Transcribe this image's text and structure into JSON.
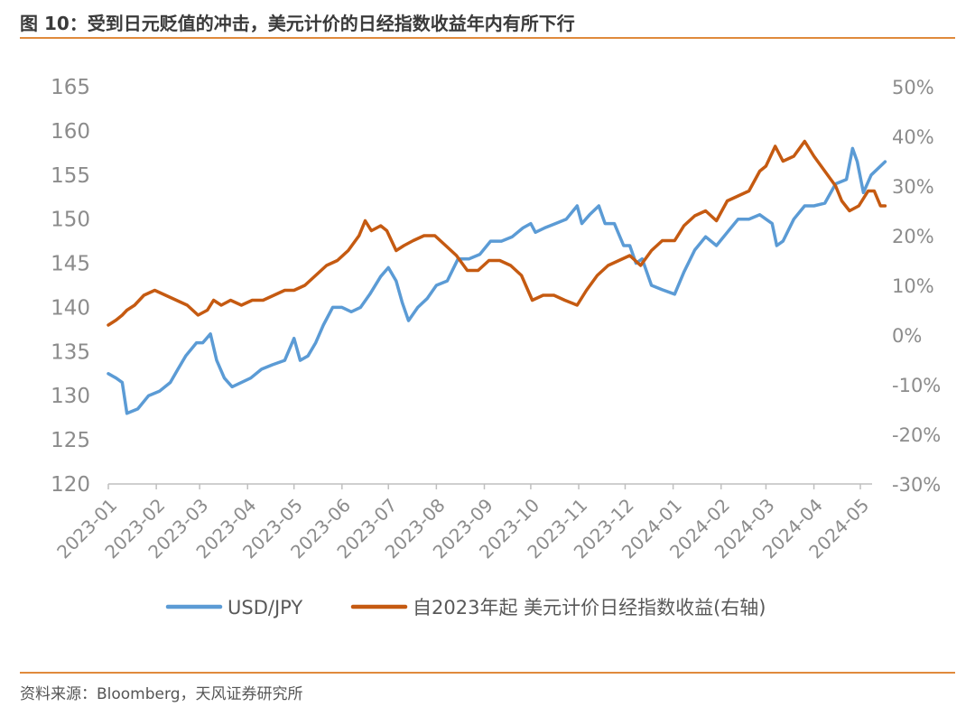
{
  "header": {
    "title": "图 10：受到日元贬值的冲击，美元计价的日经指数收益年内有所下行"
  },
  "footer": {
    "source": "资料来源：Bloomberg，天风证券研究所"
  },
  "colors": {
    "usdjpy": "#5b9bd5",
    "nikkei": "#c55a11",
    "accent": "#e08a3c",
    "tick": "#8c8c8c",
    "axis": "#bfbfbf"
  },
  "chart_data": {
    "type": "line",
    "title": "",
    "x_tick_labels": [
      "2023-01",
      "2023-02",
      "2023-03",
      "2023-04",
      "2023-05",
      "2023-06",
      "2023-07",
      "2023-08",
      "2023-09",
      "2023-10",
      "2023-11",
      "2023-12",
      "2024-01",
      "2024-02",
      "2024-03",
      "2024-04",
      "2024-05"
    ],
    "y_left": {
      "lim": [
        120,
        165
      ],
      "ticks": [
        "120",
        "125",
        "130",
        "135",
        "140",
        "145",
        "150",
        "155",
        "160",
        "165"
      ]
    },
    "y_right": {
      "lim": [
        -0.3,
        0.5
      ],
      "ticks": [
        "-30%",
        "-20%",
        "-10%",
        "0%",
        "10%",
        "20%",
        "30%",
        "40%",
        "50%"
      ]
    },
    "grid": false,
    "legend": {
      "position": "bottom"
    },
    "series": [
      {
        "name": "USD/JPY",
        "axis": "left",
        "points": [
          [
            "2023-01-01",
            132.5
          ],
          [
            "2023-01-06",
            132.0
          ],
          [
            "2023-01-10",
            131.5
          ],
          [
            "2023-01-13",
            128.0
          ],
          [
            "2023-01-20",
            128.5
          ],
          [
            "2023-01-27",
            130.0
          ],
          [
            "2023-02-03",
            130.5
          ],
          [
            "2023-02-10",
            131.5
          ],
          [
            "2023-02-15",
            133.0
          ],
          [
            "2023-02-20",
            134.5
          ],
          [
            "2023-02-27",
            136.0
          ],
          [
            "2023-03-03",
            136.0
          ],
          [
            "2023-03-08",
            137.0
          ],
          [
            "2023-03-12",
            134.0
          ],
          [
            "2023-03-17",
            132.0
          ],
          [
            "2023-03-22",
            131.0
          ],
          [
            "2023-03-28",
            131.5
          ],
          [
            "2023-04-03",
            132.0
          ],
          [
            "2023-04-10",
            133.0
          ],
          [
            "2023-04-17",
            133.5
          ],
          [
            "2023-04-25",
            134.0
          ],
          [
            "2023-05-01",
            136.5
          ],
          [
            "2023-05-05",
            134.0
          ],
          [
            "2023-05-10",
            134.5
          ],
          [
            "2023-05-15",
            136.0
          ],
          [
            "2023-05-20",
            138.0
          ],
          [
            "2023-05-26",
            140.0
          ],
          [
            "2023-06-01",
            140.0
          ],
          [
            "2023-06-07",
            139.5
          ],
          [
            "2023-06-13",
            140.0
          ],
          [
            "2023-06-19",
            141.5
          ],
          [
            "2023-06-26",
            143.5
          ],
          [
            "2023-07-01",
            144.5
          ],
          [
            "2023-07-06",
            143.0
          ],
          [
            "2023-07-10",
            140.5
          ],
          [
            "2023-07-14",
            138.5
          ],
          [
            "2023-07-20",
            140.0
          ],
          [
            "2023-07-26",
            141.0
          ],
          [
            "2023-08-01",
            142.5
          ],
          [
            "2023-08-08",
            143.0
          ],
          [
            "2023-08-15",
            145.5
          ],
          [
            "2023-08-22",
            145.5
          ],
          [
            "2023-08-29",
            146.0
          ],
          [
            "2023-09-05",
            147.5
          ],
          [
            "2023-09-12",
            147.5
          ],
          [
            "2023-09-19",
            148.0
          ],
          [
            "2023-09-26",
            149.0
          ],
          [
            "2023-10-01",
            149.5
          ],
          [
            "2023-10-04",
            148.5
          ],
          [
            "2023-10-10",
            149.0
          ],
          [
            "2023-10-17",
            149.5
          ],
          [
            "2023-10-24",
            150.0
          ],
          [
            "2023-10-31",
            151.5
          ],
          [
            "2023-11-03",
            149.5
          ],
          [
            "2023-11-08",
            150.5
          ],
          [
            "2023-11-14",
            151.5
          ],
          [
            "2023-11-18",
            149.5
          ],
          [
            "2023-11-24",
            149.5
          ],
          [
            "2023-11-30",
            147.0
          ],
          [
            "2023-12-04",
            147.0
          ],
          [
            "2023-12-08",
            145.0
          ],
          [
            "2023-12-12",
            145.5
          ],
          [
            "2023-12-18",
            142.5
          ],
          [
            "2023-12-25",
            142.0
          ],
          [
            "2024-01-02",
            141.5
          ],
          [
            "2024-01-08",
            144.0
          ],
          [
            "2024-01-15",
            146.5
          ],
          [
            "2024-01-22",
            148.0
          ],
          [
            "2024-01-29",
            147.0
          ],
          [
            "2024-02-05",
            148.5
          ],
          [
            "2024-02-12",
            150.0
          ],
          [
            "2024-02-19",
            150.0
          ],
          [
            "2024-02-26",
            150.5
          ],
          [
            "2024-03-01",
            150.0
          ],
          [
            "2024-03-05",
            149.5
          ],
          [
            "2024-03-08",
            147.0
          ],
          [
            "2024-03-12",
            147.5
          ],
          [
            "2024-03-19",
            150.0
          ],
          [
            "2024-03-26",
            151.5
          ],
          [
            "2024-04-01",
            151.5
          ],
          [
            "2024-04-08",
            151.8
          ],
          [
            "2024-04-15",
            154.0
          ],
          [
            "2024-04-22",
            154.5
          ],
          [
            "2024-04-26",
            158.0
          ],
          [
            "2024-04-29",
            156.5
          ],
          [
            "2024-05-03",
            153.0
          ],
          [
            "2024-05-08",
            155.0
          ],
          [
            "2024-05-14",
            156.0
          ],
          [
            "2024-05-17",
            156.5
          ]
        ]
      },
      {
        "name": "自2023年起 美元计价日经指数收益(右轴)",
        "axis": "right",
        "points": [
          [
            "2023-01-01",
            0.02
          ],
          [
            "2023-01-06",
            0.03
          ],
          [
            "2023-01-10",
            0.04
          ],
          [
            "2023-01-13",
            0.05
          ],
          [
            "2023-01-18",
            0.06
          ],
          [
            "2023-01-24",
            0.08
          ],
          [
            "2023-01-31",
            0.09
          ],
          [
            "2023-02-07",
            0.08
          ],
          [
            "2023-02-14",
            0.07
          ],
          [
            "2023-02-21",
            0.06
          ],
          [
            "2023-02-28",
            0.04
          ],
          [
            "2023-03-06",
            0.05
          ],
          [
            "2023-03-10",
            0.07
          ],
          [
            "2023-03-15",
            0.06
          ],
          [
            "2023-03-21",
            0.07
          ],
          [
            "2023-03-28",
            0.06
          ],
          [
            "2023-04-04",
            0.07
          ],
          [
            "2023-04-11",
            0.07
          ],
          [
            "2023-04-18",
            0.08
          ],
          [
            "2023-04-25",
            0.09
          ],
          [
            "2023-05-01",
            0.09
          ],
          [
            "2023-05-08",
            0.1
          ],
          [
            "2023-05-15",
            0.12
          ],
          [
            "2023-05-22",
            0.14
          ],
          [
            "2023-05-29",
            0.15
          ],
          [
            "2023-06-05",
            0.17
          ],
          [
            "2023-06-12",
            0.2
          ],
          [
            "2023-06-16",
            0.23
          ],
          [
            "2023-06-20",
            0.21
          ],
          [
            "2023-06-26",
            0.22
          ],
          [
            "2023-06-30",
            0.21
          ],
          [
            "2023-07-06",
            0.17
          ],
          [
            "2023-07-11",
            0.18
          ],
          [
            "2023-07-17",
            0.19
          ],
          [
            "2023-07-24",
            0.2
          ],
          [
            "2023-07-31",
            0.2
          ],
          [
            "2023-08-07",
            0.18
          ],
          [
            "2023-08-14",
            0.16
          ],
          [
            "2023-08-21",
            0.13
          ],
          [
            "2023-08-28",
            0.13
          ],
          [
            "2023-09-04",
            0.15
          ],
          [
            "2023-09-11",
            0.15
          ],
          [
            "2023-09-18",
            0.14
          ],
          [
            "2023-09-25",
            0.12
          ],
          [
            "2023-10-02",
            0.07
          ],
          [
            "2023-10-09",
            0.08
          ],
          [
            "2023-10-16",
            0.08
          ],
          [
            "2023-10-23",
            0.07
          ],
          [
            "2023-10-31",
            0.06
          ],
          [
            "2023-11-06",
            0.09
          ],
          [
            "2023-11-13",
            0.12
          ],
          [
            "2023-11-20",
            0.14
          ],
          [
            "2023-11-27",
            0.15
          ],
          [
            "2023-12-04",
            0.16
          ],
          [
            "2023-12-11",
            0.14
          ],
          [
            "2023-12-18",
            0.17
          ],
          [
            "2023-12-25",
            0.19
          ],
          [
            "2024-01-02",
            0.19
          ],
          [
            "2024-01-08",
            0.22
          ],
          [
            "2024-01-15",
            0.24
          ],
          [
            "2024-01-22",
            0.25
          ],
          [
            "2024-01-29",
            0.23
          ],
          [
            "2024-02-05",
            0.27
          ],
          [
            "2024-02-12",
            0.28
          ],
          [
            "2024-02-19",
            0.29
          ],
          [
            "2024-02-26",
            0.33
          ],
          [
            "2024-03-01",
            0.34
          ],
          [
            "2024-03-07",
            0.38
          ],
          [
            "2024-03-12",
            0.35
          ],
          [
            "2024-03-19",
            0.36
          ],
          [
            "2024-03-26",
            0.39
          ],
          [
            "2024-04-01",
            0.36
          ],
          [
            "2024-04-08",
            0.33
          ],
          [
            "2024-04-15",
            0.3
          ],
          [
            "2024-04-19",
            0.27
          ],
          [
            "2024-04-24",
            0.25
          ],
          [
            "2024-04-30",
            0.26
          ],
          [
            "2024-05-06",
            0.29
          ],
          [
            "2024-05-10",
            0.29
          ],
          [
            "2024-05-14",
            0.26
          ],
          [
            "2024-05-17",
            0.26
          ]
        ]
      }
    ]
  }
}
